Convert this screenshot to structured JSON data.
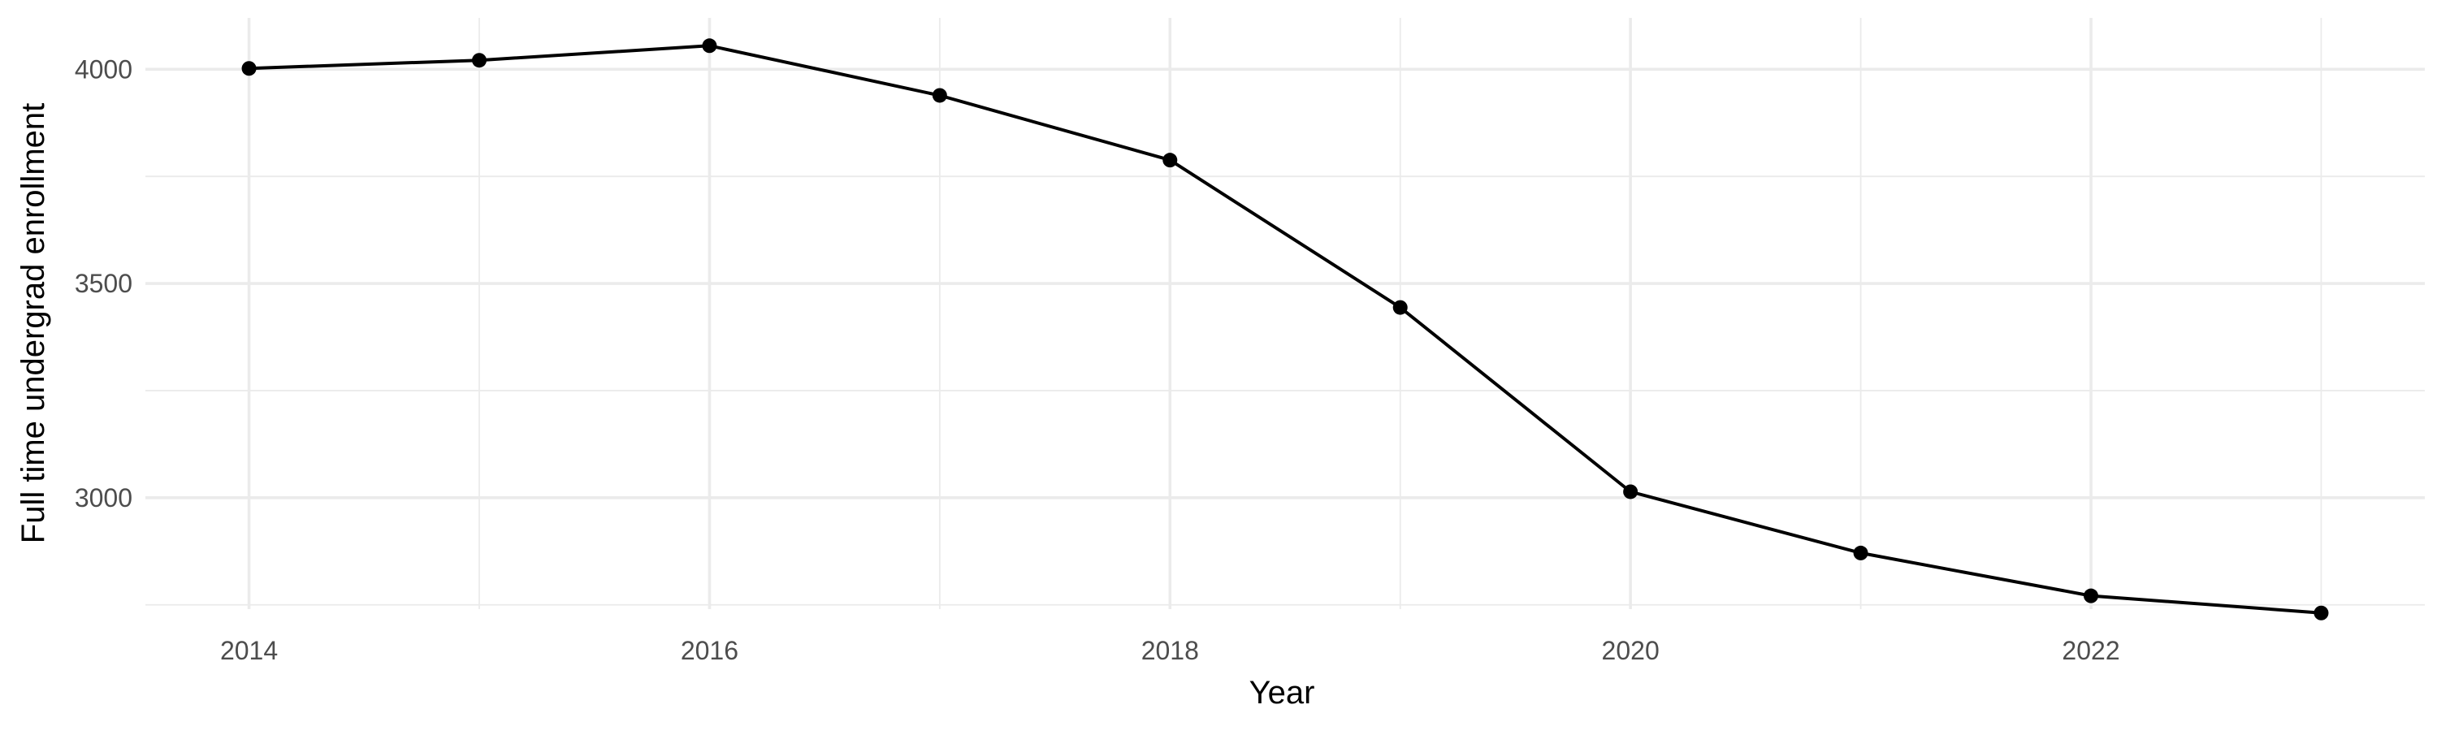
{
  "chart_data": {
    "type": "line",
    "title": "",
    "xlabel": "Year",
    "ylabel": "Full time undergrad enrollment",
    "x": [
      2014,
      2015,
      2016,
      2017,
      2018,
      2019,
      2020,
      2021,
      2022,
      2023
    ],
    "series": [
      {
        "values": [
          4002,
          4021,
          4055,
          3939,
          3788,
          3444,
          3014,
          2871,
          2771,
          2731
        ],
        "color": "#000000",
        "marker": "circle"
      }
    ],
    "xlim": [
      2013.55,
      2023.45
    ],
    "ylim": [
      2740,
      4120
    ],
    "x_major_ticks": [
      2014,
      2016,
      2018,
      2020,
      2022
    ],
    "x_tick_labels": [
      "2014",
      "2016",
      "2018",
      "2020",
      "2022"
    ],
    "x_minor_ticks": [
      2015,
      2017,
      2019,
      2021,
      2023
    ],
    "y_major_ticks": [
      3000,
      3500,
      4000
    ],
    "y_tick_labels": [
      "3000",
      "3500",
      "4000"
    ],
    "y_minor_ticks": [
      2750,
      3250,
      3750
    ],
    "grid": true,
    "legend": "none",
    "theme": "minimal"
  }
}
